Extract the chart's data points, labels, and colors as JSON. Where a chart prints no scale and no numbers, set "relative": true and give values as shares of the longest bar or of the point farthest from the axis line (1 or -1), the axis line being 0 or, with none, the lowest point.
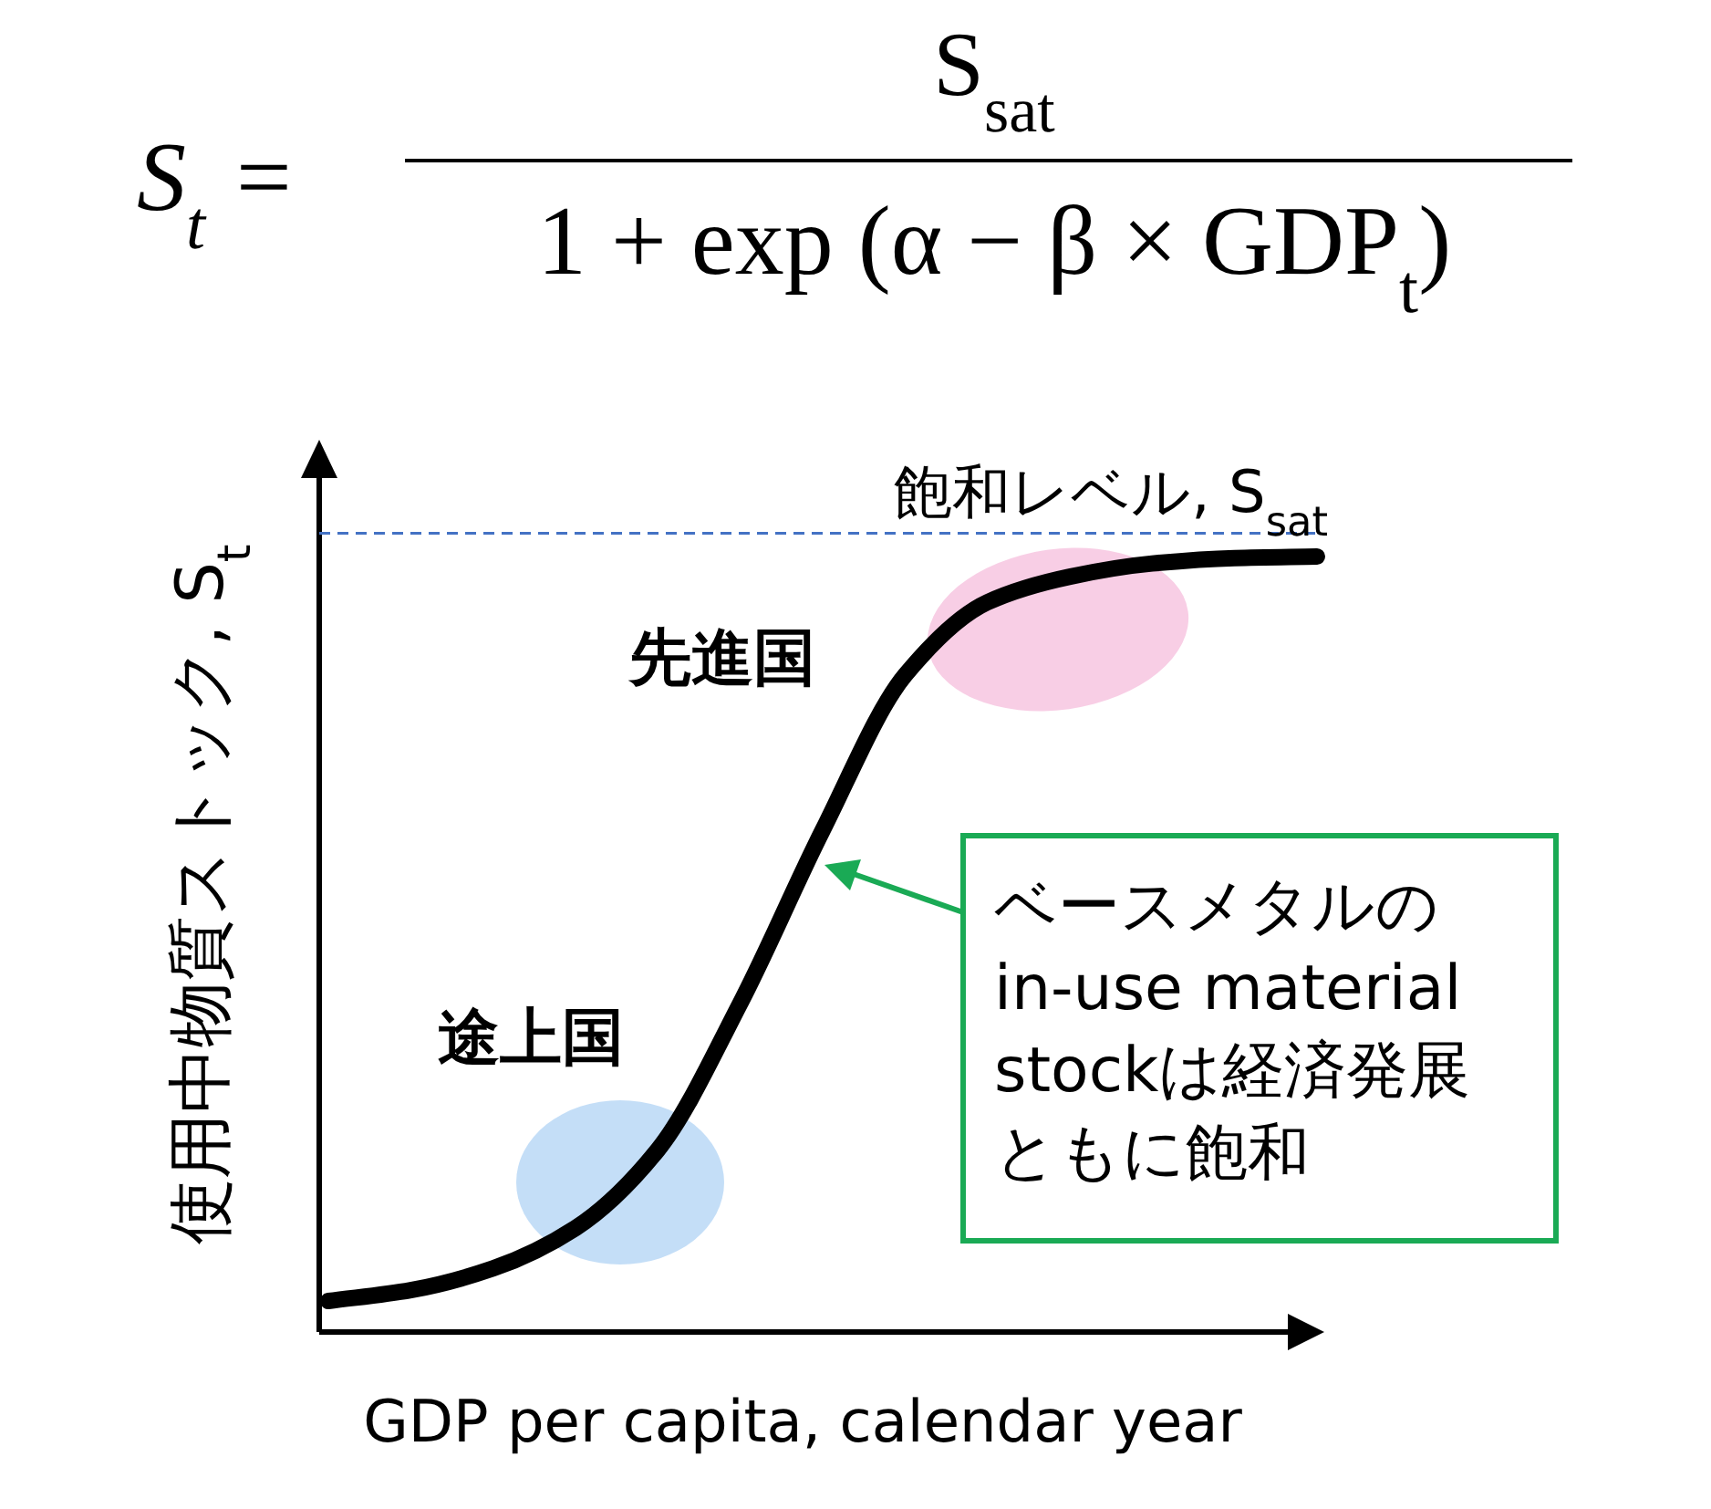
{
  "chart_data": {
    "type": "line",
    "relative": true,
    "xlabel": "GDP per capita, calendar year",
    "ylabel": "使用中物質ストック, S$_{t}$",
    "categories": [
      null,
      null,
      null,
      null,
      null,
      null,
      null,
      null,
      null,
      null,
      null,
      null,
      null
    ],
    "series": [
      {
        "color": "#000000",
        "values": [
          0.04,
          0.054,
          0.082,
          0.134,
          0.235,
          0.424,
          0.647,
          0.847,
          0.941,
          0.974,
          0.991,
          0.998,
          1
        ]
      }
    ],
    "marker": "none",
    "line_style": "solid",
    "ref_lines": [
      {
        "axis": "y",
        "value": 1.03,
        "label": "飽和レベル, S$_{sat}$",
        "color": "#4472c4",
        "line_style": "dashed"
      }
    ],
    "annotations": [
      "S$_{t}$ =",
      "S$_{sat}$",
      "1 + exp (α − β × GDP$_{t}$)",
      "先進国",
      "途上国",
      "ベースメタルのin-use material stockは経済発展ともに飽和"
    ]
  }
}
